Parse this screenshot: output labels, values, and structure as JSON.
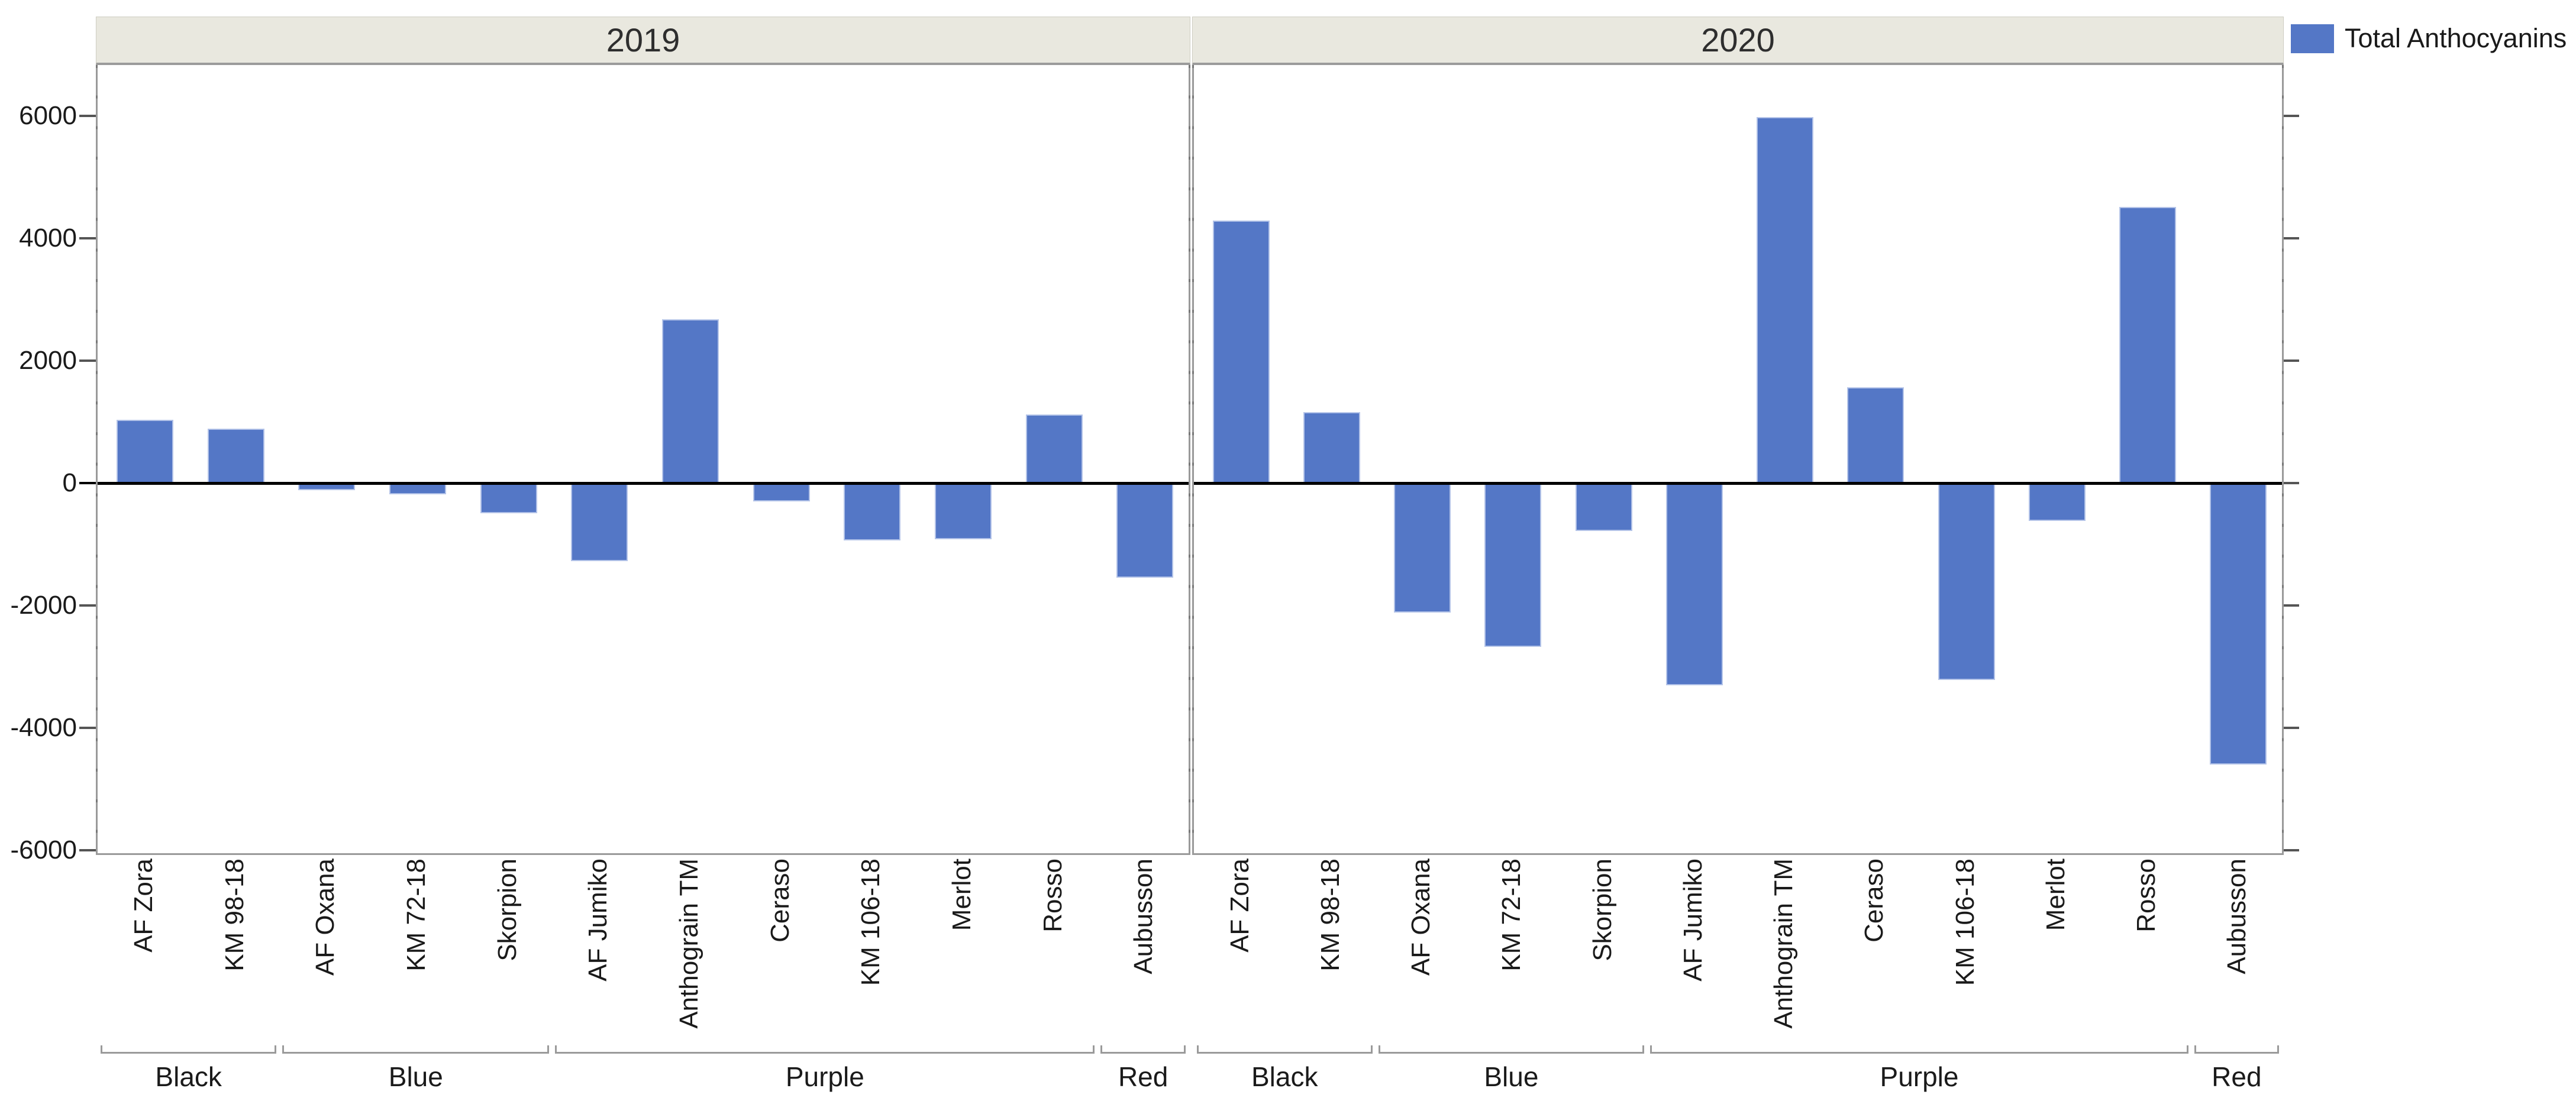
{
  "legend": {
    "label": "Total Anthocyanins",
    "swatch_color": "#5477C6"
  },
  "chart_data": {
    "type": "bar",
    "title": "",
    "xlabel": "",
    "ylabel": "",
    "legend_label": "Total Anthocyanins",
    "legend_position": "top-right",
    "grid": false,
    "zero_line": true,
    "panels": [
      "2019",
      "2020"
    ],
    "categories": [
      "AF Zora",
      "KM 98-18",
      "AF Oxana",
      "KM 72-18",
      "Skorpion",
      "AF Jumiko",
      "Anthograin TM",
      "Ceraso",
      "KM 106-18",
      "Merlot",
      "Rosso",
      "Aubusson"
    ],
    "category_groups": [
      {
        "label": "Black",
        "from": 0,
        "to": 1
      },
      {
        "label": "Blue",
        "from": 2,
        "to": 4
      },
      {
        "label": "Purple",
        "from": 5,
        "to": 10
      },
      {
        "label": "Red",
        "from": 11,
        "to": 11
      }
    ],
    "series": [
      {
        "name": "2019",
        "values": [
          1030,
          890,
          -120,
          -180,
          -490,
          -1280,
          2680,
          -300,
          -940,
          -920,
          1120,
          -1550
        ]
      },
      {
        "name": "2020",
        "values": [
          4290,
          1160,
          -2120,
          -2680,
          -780,
          -3300,
          5980,
          1570,
          -3220,
          -620,
          4510,
          -4600
        ]
      }
    ],
    "y_ticks": [
      6000,
      4000,
      2000,
      0,
      -2000,
      -4000,
      -6000
    ],
    "ylim": [
      -6100,
      6850
    ]
  },
  "colors": {
    "bar_fill": "#5477C6",
    "bar_border": "#b3c3e8",
    "header_bg": "#E9E8DF",
    "header_border": "#9b9b9b",
    "plot_border": "#9a9a9a",
    "text": "#1a1a1a",
    "zero_line": "#000000"
  }
}
